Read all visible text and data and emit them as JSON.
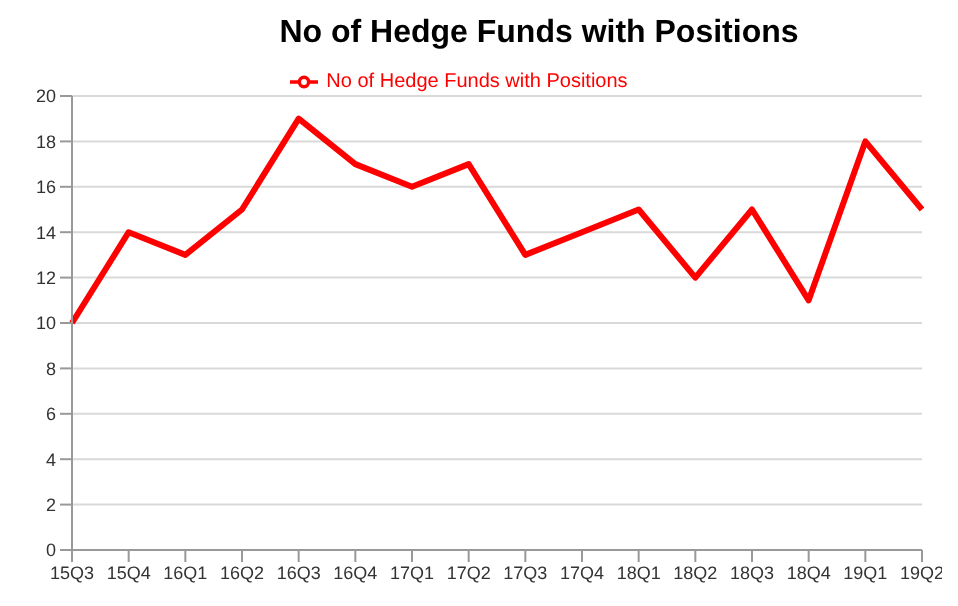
{
  "chart_data": {
    "type": "line",
    "title": "No of Hedge Funds with Positions",
    "categories": [
      "15Q3",
      "15Q4",
      "16Q1",
      "16Q2",
      "16Q3",
      "16Q4",
      "17Q1",
      "17Q2",
      "17Q3",
      "17Q4",
      "18Q1",
      "18Q2",
      "18Q3",
      "18Q4",
      "19Q1",
      "19Q2"
    ],
    "series": [
      {
        "name": "No of Hedge Funds with Positions",
        "color": "#ff0000",
        "values": [
          10,
          14,
          13,
          15,
          19,
          17,
          16,
          17,
          13,
          14,
          15,
          12,
          15,
          11,
          18,
          15
        ]
      }
    ],
    "ylim": [
      0,
      20
    ],
    "yticks": [
      0,
      2,
      4,
      6,
      8,
      10,
      12,
      14,
      16,
      18,
      20
    ],
    "grid": "y",
    "legend": "top",
    "marker": "none",
    "line_style": "solid"
  }
}
